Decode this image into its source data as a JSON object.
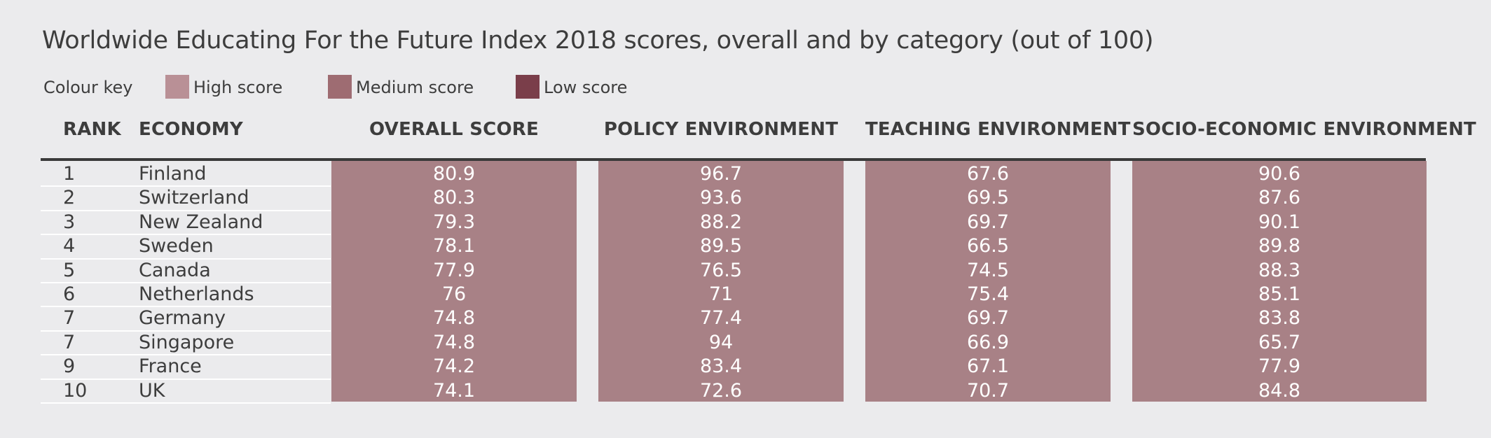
{
  "title": "Worldwide Educating For the Future Index 2018 scores, overall and by category (out of 100)",
  "legend": {
    "label": "Colour key",
    "items": [
      {
        "label": "High score",
        "color": "#b99096"
      },
      {
        "label": "Medium score",
        "color": "#9e6c72"
      },
      {
        "label": "Low score",
        "color": "#7a3e4a"
      }
    ]
  },
  "colors": {
    "cell_fill": "#a88186",
    "header_rule": "#3a3a3a",
    "background": "#ebebed"
  },
  "chart_data": {
    "type": "table",
    "title": "Worldwide Educating For the Future Index 2018 scores, overall and by category (out of 100)",
    "columns": [
      "RANK",
      "ECONOMY",
      "OVERALL SCORE",
      "POLICY ENVIRONMENT",
      "TEACHING ENVIRONMENT",
      "SOCIO-ECONOMIC ENVIRONMENT"
    ],
    "rows": [
      {
        "rank": "1",
        "economy": "Finland",
        "overall": "80.9",
        "policy": "96.7",
        "teaching": "67.6",
        "socio": "90.6"
      },
      {
        "rank": "2",
        "economy": "Switzerland",
        "overall": "80.3",
        "policy": "93.6",
        "teaching": "69.5",
        "socio": "87.6"
      },
      {
        "rank": "3",
        "economy": "New Zealand",
        "overall": "79.3",
        "policy": "88.2",
        "teaching": "69.7",
        "socio": "90.1"
      },
      {
        "rank": "4",
        "economy": "Sweden",
        "overall": "78.1",
        "policy": "89.5",
        "teaching": "66.5",
        "socio": "89.8"
      },
      {
        "rank": "5",
        "economy": "Canada",
        "overall": "77.9",
        "policy": "76.5",
        "teaching": "74.5",
        "socio": "88.3"
      },
      {
        "rank": "6",
        "economy": "Netherlands",
        "overall": "76",
        "policy": "71",
        "teaching": "75.4",
        "socio": "85.1"
      },
      {
        "rank": "7",
        "economy": "Germany",
        "overall": "74.8",
        "policy": "77.4",
        "teaching": "69.7",
        "socio": "83.8"
      },
      {
        "rank": "7",
        "economy": "Singapore",
        "overall": "74.8",
        "policy": "94",
        "teaching": "66.9",
        "socio": "65.7"
      },
      {
        "rank": "9",
        "economy": "France",
        "overall": "74.2",
        "policy": "83.4",
        "teaching": "67.1",
        "socio": "77.9"
      },
      {
        "rank": "10",
        "economy": "UK",
        "overall": "74.1",
        "policy": "72.6",
        "teaching": "70.7",
        "socio": "84.8"
      }
    ]
  }
}
